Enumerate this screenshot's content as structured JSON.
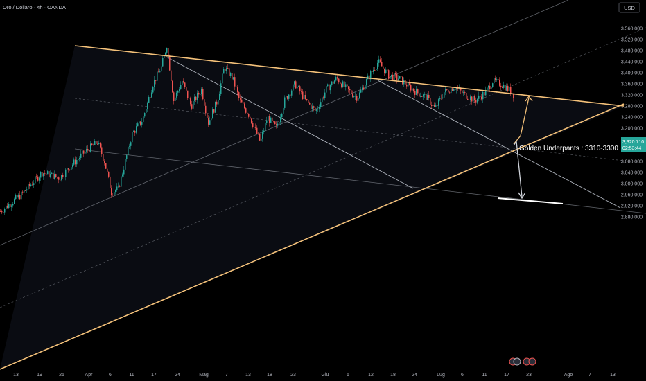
{
  "header": {
    "symbol_title": "Oro / Dollaro · 4h · OANDA",
    "currency": "USD"
  },
  "price_badge": {
    "price": "3,320.710",
    "countdown": "02:53:44"
  },
  "annotation": "Golden Underpants : 3310-3300",
  "colors": {
    "background": "#000000",
    "bull": "#26a69a",
    "bear": "#ef5350",
    "trendline": "#f5c27a",
    "channel": "#8a8f98",
    "arrow": "#cfd3da",
    "badge": "#26a69a"
  },
  "chart_data": {
    "type": "candlestick",
    "instrument": "Oro / Dollaro",
    "timeframe": "4h",
    "source": "OANDA",
    "ylim": [
      2870,
      3600
    ],
    "y_ticks": [
      2880,
      2920,
      2960,
      3000,
      3040,
      3080,
      3120,
      3160,
      3200,
      3240,
      3280,
      3320,
      3360,
      3400,
      3440,
      3480,
      3520,
      3560
    ],
    "y_tick_labels": [
      "2.880,000",
      "2.920,000",
      "2.960,000",
      "3.000,000",
      "3.040,000",
      "3.080,000",
      "3.120,000",
      "3.160,000",
      "3.200,000",
      "3.240,000",
      "3.280,000",
      "3.320,000",
      "3.360,000",
      "3.400,000",
      "3.440,000",
      "3.480,000",
      "3.520,000",
      "3.560,000"
    ],
    "x_tick_labels": [
      "13",
      "19",
      "25",
      "Apr",
      "6",
      "11",
      "17",
      "24",
      "Mag",
      "7",
      "13",
      "18",
      "23",
      "Giu",
      "6",
      "12",
      "18",
      "24",
      "Lug",
      "6",
      "11",
      "17",
      "23",
      "Ago",
      "7",
      "13"
    ],
    "last_price": 3320.71,
    "price_path": [
      [
        0,
        2900
      ],
      [
        30,
        2960
      ],
      [
        60,
        3040
      ],
      [
        85,
        3020
      ],
      [
        100,
        3060
      ],
      [
        120,
        3110
      ],
      [
        140,
        3150
      ],
      [
        150,
        3080
      ],
      [
        160,
        2970
      ],
      [
        170,
        2980
      ],
      [
        180,
        3080
      ],
      [
        190,
        3180
      ],
      [
        205,
        3230
      ],
      [
        220,
        3360
      ],
      [
        232,
        3420
      ],
      [
        240,
        3500
      ],
      [
        250,
        3300
      ],
      [
        262,
        3370
      ],
      [
        275,
        3280
      ],
      [
        290,
        3340
      ],
      [
        300,
        3220
      ],
      [
        313,
        3300
      ],
      [
        323,
        3420
      ],
      [
        335,
        3380
      ],
      [
        345,
        3300
      ],
      [
        358,
        3250
      ],
      [
        375,
        3150
      ],
      [
        385,
        3240
      ],
      [
        398,
        3200
      ],
      [
        410,
        3300
      ],
      [
        425,
        3360
      ],
      [
        440,
        3300
      ],
      [
        455,
        3260
      ],
      [
        470,
        3340
      ],
      [
        485,
        3380
      ],
      [
        500,
        3340
      ],
      [
        515,
        3310
      ],
      [
        530,
        3380
      ],
      [
        545,
        3440
      ],
      [
        560,
        3390
      ],
      [
        575,
        3380
      ],
      [
        585,
        3360
      ],
      [
        600,
        3330
      ],
      [
        615,
        3310
      ],
      [
        627,
        3270
      ],
      [
        640,
        3330
      ],
      [
        655,
        3350
      ],
      [
        670,
        3320
      ],
      [
        685,
        3300
      ],
      [
        700,
        3330
      ],
      [
        710,
        3370
      ],
      [
        722,
        3360
      ],
      [
        733,
        3340
      ],
      [
        741,
        3320
      ]
    ]
  }
}
